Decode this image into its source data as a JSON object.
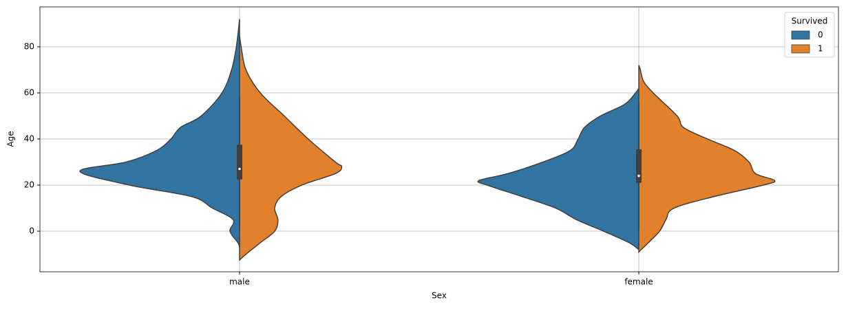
{
  "chart_data": {
    "type": "violin",
    "xlabel": "Sex",
    "ylabel": "Age",
    "categories": [
      "male",
      "female"
    ],
    "ylim": [
      -17.6,
      97.3
    ],
    "yticks": [
      0,
      20,
      40,
      60,
      80
    ],
    "grid": true,
    "legend_title": "Survived",
    "legend_loc": "upper right",
    "series": [
      {
        "name": "0",
        "color": "#3274a1",
        "violins": [
          {
            "ages": [
              92,
              80,
              70,
              60,
              50,
              45,
              40,
              35,
              30,
              26,
              20,
              15,
              10,
              5,
              0,
              -5,
              -7
            ],
            "density": [
              0,
              0.02,
              0.05,
              0.11,
              0.24,
              0.37,
              0.43,
              0.52,
              0.71,
              1.0,
              0.69,
              0.3,
              0.17,
              0.04,
              0.06,
              0.01,
              0
            ]
          },
          {
            "ages": [
              62,
              60,
              55,
              50,
              45,
              40,
              35,
              30,
              25,
              22,
              20,
              15,
              10,
              5,
              0,
              -5,
              -8
            ],
            "density": [
              0,
              0.02,
              0.09,
              0.24,
              0.34,
              0.38,
              0.43,
              0.6,
              0.82,
              1.0,
              0.95,
              0.73,
              0.52,
              0.39,
              0.22,
              0.06,
              0
            ]
          }
        ]
      },
      {
        "name": "1",
        "color": "#e1812c",
        "violins": [
          {
            "ages": [
              85,
              80,
              70,
              60,
              50,
              40,
              30,
              28,
              25,
              20,
              15,
              10,
              5,
              0,
              -5,
              -10,
              -12.5
            ],
            "density": [
              0,
              0.01,
              0.04,
              0.13,
              0.28,
              0.43,
              0.6,
              0.64,
              0.6,
              0.39,
              0.26,
              0.22,
              0.24,
              0.22,
              0.13,
              0.04,
              0
            ]
          },
          {
            "ages": [
              72,
              70,
              65,
              60,
              50,
              45,
              40,
              35,
              30,
              25,
              22,
              20,
              15,
              10,
              5,
              0,
              -5,
              -9
            ],
            "density": [
              0,
              0.01,
              0.03,
              0.09,
              0.24,
              0.28,
              0.43,
              0.6,
              0.69,
              0.73,
              0.85,
              0.78,
              0.47,
              0.22,
              0.17,
              0.13,
              0.06,
              0
            ]
          }
        ]
      }
    ],
    "boxes": [
      {
        "whisker_low": 0.5,
        "q1": 22.5,
        "median": 27,
        "q3": 37.5,
        "whisker_high": 58
      },
      {
        "whisker_low": 0.5,
        "q1": 21,
        "median": 24,
        "q3": 35.5,
        "whisker_high": 56
      }
    ]
  }
}
